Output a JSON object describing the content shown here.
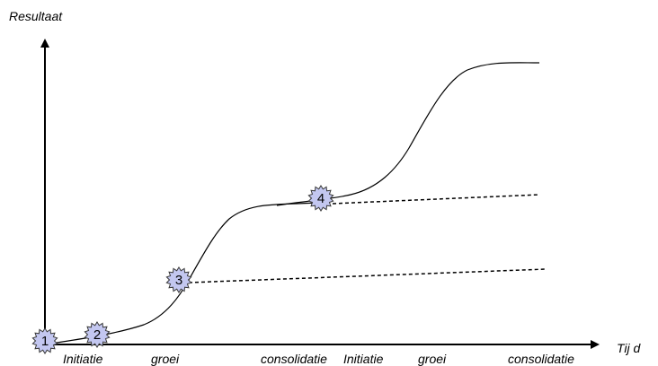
{
  "axes": {
    "y_label": "Resultaat",
    "x_label": "Tij d"
  },
  "phases": [
    "Initiatie",
    "groei",
    "consolidatie",
    "Initiatie",
    "groei",
    "consolidatie"
  ],
  "markers": [
    "1",
    "2",
    "3",
    "4"
  ],
  "colors": {
    "marker_fill": "#c3c7f0",
    "marker_stroke": "#3a3a3a",
    "curve": "#000000"
  }
}
